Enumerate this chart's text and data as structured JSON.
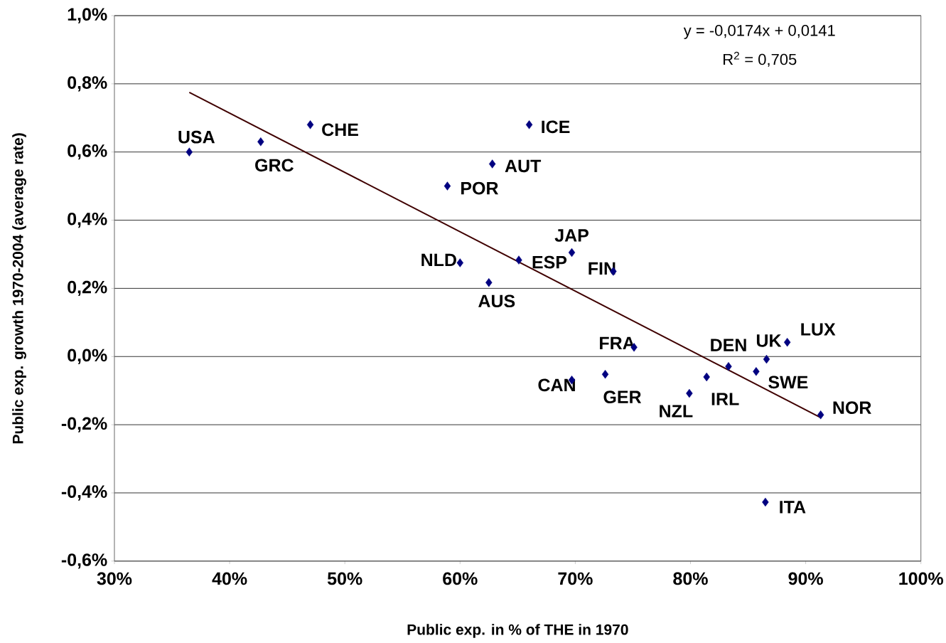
{
  "chart_data": {
    "type": "scatter",
    "xlabel": "Public exp. in % of THE in 1970",
    "ylabel": "Public exp. growth 1970-2004 (average rate)",
    "series": [
      {
        "color": "#000080",
        "x": [
          36.5,
          42.7,
          47.0,
          66.0,
          62.8,
          58.9,
          69.7,
          60.0,
          65.1,
          73.3,
          62.5,
          75.1,
          88.4,
          86.6,
          83.3,
          85.7,
          69.7,
          72.6,
          81.4,
          79.9,
          91.3,
          86.5
        ],
        "values": [
          0.6,
          0.63,
          0.68,
          0.68,
          0.565,
          0.5,
          0.305,
          0.275,
          0.283,
          0.25,
          0.217,
          0.027,
          0.042,
          -0.008,
          -0.029,
          -0.044,
          -0.069,
          -0.052,
          -0.06,
          -0.108,
          -0.171,
          -0.427
        ]
      },
      {
        "type": "line",
        "marker": "none",
        "color": "#3f0000",
        "x": [
          36.5,
          91.3
        ],
        "values": [
          0.775,
          -0.179
        ]
      }
    ],
    "xlim": [
      30,
      100
    ],
    "ylim": [
      -0.6,
      1.0
    ],
    "xticks": [
      {
        "value": 30,
        "label": "30%"
      },
      {
        "value": 40,
        "label": "40%"
      },
      {
        "value": 50,
        "label": "50%"
      },
      {
        "value": 60,
        "label": "60%"
      },
      {
        "value": 70,
        "label": "70%"
      },
      {
        "value": 80,
        "label": "80%"
      },
      {
        "value": 90,
        "label": "90%"
      },
      {
        "value": 100,
        "label": "100%"
      }
    ],
    "yticks": [
      {
        "value": -0.6,
        "label": "-0,6%"
      },
      {
        "value": -0.4,
        "label": "-0,4%"
      },
      {
        "value": -0.2,
        "label": "-0,2%"
      },
      {
        "value": 0,
        "label": "0,0%"
      },
      {
        "value": 0.2,
        "label": "0,2%"
      },
      {
        "value": 0.4,
        "label": "0,4%"
      },
      {
        "value": 0.6,
        "label": "0,6%"
      },
      {
        "value": 0.8,
        "label": "0,8%"
      },
      {
        "value": 1.0,
        "label": "1,0%"
      }
    ],
    "grid": "y",
    "marker": "diamond",
    "annotations": [
      "y = -0,0174x + 0,0141",
      "R$^{2}$ = 0,705",
      {
        "text": "USA",
        "x": 36.5,
        "y": 0.6
      },
      {
        "text": "GRC",
        "x": 42.7,
        "y": 0.63
      },
      {
        "text": "CHE",
        "x": 47.0,
        "y": 0.68
      },
      {
        "text": "ICE",
        "x": 66.0,
        "y": 0.68
      },
      {
        "text": "AUT",
        "x": 62.8,
        "y": 0.565
      },
      {
        "text": "POR",
        "x": 58.9,
        "y": 0.5
      },
      {
        "text": "JAP",
        "x": 69.7,
        "y": 0.305
      },
      {
        "text": "NLD",
        "x": 60.0,
        "y": 0.275
      },
      {
        "text": "ESP",
        "x": 65.1,
        "y": 0.283
      },
      {
        "text": "FIN",
        "x": 73.3,
        "y": 0.25
      },
      {
        "text": "AUS",
        "x": 62.5,
        "y": 0.217
      },
      {
        "text": "FRA",
        "x": 75.1,
        "y": 0.027
      },
      {
        "text": "LUX",
        "x": 88.4,
        "y": 0.042
      },
      {
        "text": "UK",
        "x": 86.6,
        "y": -0.008
      },
      {
        "text": "DEN",
        "x": 83.3,
        "y": -0.029
      },
      {
        "text": "SWE",
        "x": 85.7,
        "y": -0.044
      },
      {
        "text": "CAN",
        "x": 69.7,
        "y": -0.069
      },
      {
        "text": "GER",
        "x": 72.6,
        "y": -0.052
      },
      {
        "text": "IRL",
        "x": 81.4,
        "y": -0.06
      },
      {
        "text": "NZL",
        "x": 79.9,
        "y": -0.108
      },
      {
        "text": "NOR",
        "x": 91.3,
        "y": -0.171
      },
      {
        "text": "ITA",
        "x": 86.5,
        "y": -0.427
      }
    ]
  }
}
